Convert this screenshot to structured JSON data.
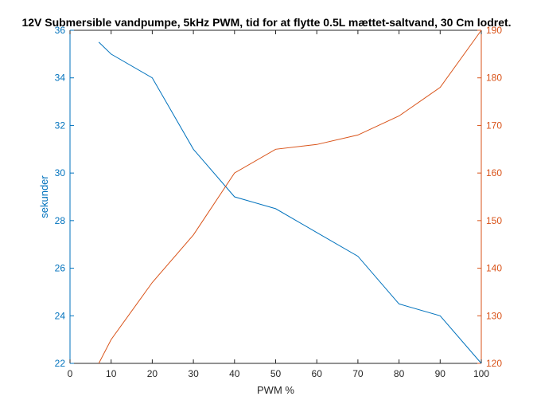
{
  "chart_data": {
    "type": "line",
    "title": "12V Submersible vandpumpe, 5kHz PWM, tid for at flytte 0.5L mættet-saltvand, 30 Cm lodret.",
    "xlabel": "PWM %",
    "ylabel_left": "sekunder",
    "ylabel_right": "",
    "xlim": [
      0,
      100
    ],
    "ylim_left": [
      22,
      36
    ],
    "ylim_right": [
      120,
      190
    ],
    "xticks": [
      0,
      10,
      20,
      30,
      40,
      50,
      60,
      70,
      80,
      90,
      100
    ],
    "yticks_left": [
      22,
      24,
      26,
      28,
      30,
      32,
      34,
      36
    ],
    "yticks_right": [
      120,
      130,
      140,
      150,
      160,
      170,
      180,
      190
    ],
    "grid": false,
    "legend": "none",
    "series": [
      {
        "axis": "left",
        "color": "#0072BD",
        "x": [
          7,
          10,
          20,
          30,
          40,
          50,
          60,
          70,
          80,
          90,
          100
        ],
        "y": [
          35.5,
          35,
          34,
          31,
          29,
          28.5,
          27.5,
          26.5,
          24.5,
          24,
          22
        ]
      },
      {
        "axis": "right",
        "color": "#D95319",
        "x": [
          7,
          10,
          20,
          30,
          40,
          50,
          60,
          70,
          80,
          90,
          100
        ],
        "y": [
          120,
          125,
          137,
          147,
          160,
          165,
          166,
          168,
          172,
          178,
          190
        ]
      }
    ]
  }
}
